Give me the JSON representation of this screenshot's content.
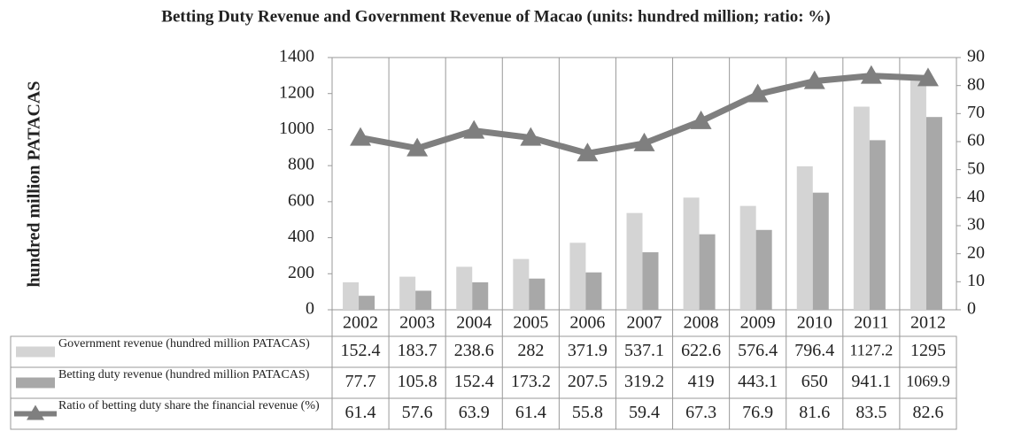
{
  "chart_data": {
    "type": "bar",
    "title": "Betting Duty Revenue and Government Revenue of Macao (units: hundred million; ratio: %)",
    "y_label": "hundred million PATACAS",
    "categories": [
      "2002",
      "2003",
      "2004",
      "2005",
      "2006",
      "2007",
      "2008",
      "2009",
      "2010",
      "2011",
      "2012"
    ],
    "series": [
      {
        "name": "Government revenue (hundred million PATACAS)",
        "type": "bar",
        "color": "#d4d4d4",
        "values": [
          152.4,
          183.7,
          238.6,
          282,
          371.9,
          537.1,
          622.6,
          576.4,
          796.4,
          1127.2,
          1295
        ]
      },
      {
        "name": "Betting duty revenue (hundred million PATACAS)",
        "type": "bar",
        "color": "#a8a8a8",
        "values": [
          77.7,
          105.8,
          152.4,
          173.2,
          207.5,
          319.2,
          419,
          443.1,
          650,
          941.1,
          1069.9
        ]
      },
      {
        "name": "Ratio of betting duty share the financial revenue (%)",
        "type": "line",
        "axis": "y2",
        "color": "#7f7f7f",
        "values": [
          61.4,
          57.6,
          63.9,
          61.4,
          55.8,
          59.4,
          67.3,
          76.9,
          81.6,
          83.5,
          82.6
        ]
      }
    ],
    "ylim": [
      0,
      1400
    ],
    "yticks": [
      0,
      200,
      400,
      600,
      800,
      1000,
      1200,
      1400
    ],
    "y2lim": [
      0,
      90
    ],
    "y2ticks": [
      0,
      10,
      20,
      30,
      40,
      50,
      60,
      70,
      80,
      90
    ],
    "grid": false
  }
}
